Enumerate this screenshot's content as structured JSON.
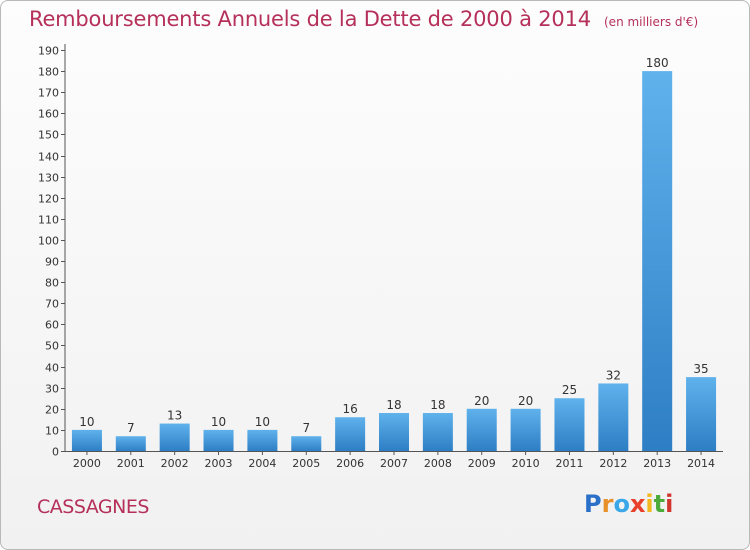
{
  "title": {
    "main": "Remboursements Annuels de la Dette de 2000 à 2014",
    "unit": "(en milliers d'€)"
  },
  "commune": "CASSAGNES",
  "logo": {
    "text": "Proxiti",
    "letter_colors": [
      "#2a6fc8",
      "#e8902a",
      "#3aa7e8",
      "#e8402a",
      "#f2b81e",
      "#4cab3a",
      "#d0352f"
    ]
  },
  "colors": {
    "title": "#b5305a",
    "bar_light": "#5fb2ec",
    "bar_dark": "#2d7ec4",
    "axis": "#555555",
    "grid": "#cfcfcf"
  },
  "chart_data": {
    "type": "bar",
    "title": "Remboursements Annuels de la Dette de 2000 à 2014",
    "subtitle": "(en milliers d'€)",
    "xlabel": "",
    "ylabel": "",
    "categories": [
      "2000",
      "2001",
      "2002",
      "2003",
      "2004",
      "2005",
      "2006",
      "2007",
      "2008",
      "2009",
      "2010",
      "2011",
      "2012",
      "2013",
      "2014"
    ],
    "values": [
      10,
      7,
      13,
      10,
      10,
      7,
      16,
      18,
      18,
      20,
      20,
      25,
      32,
      180,
      35
    ],
    "data_labels": [
      "10",
      "7",
      "13",
      "10",
      "10",
      "7",
      "16",
      "18",
      "18",
      "20",
      "20",
      "25",
      "32",
      "180",
      "35"
    ],
    "ylim": [
      0,
      190
    ],
    "yticks": [
      0,
      10,
      20,
      30,
      40,
      50,
      60,
      70,
      80,
      90,
      100,
      110,
      120,
      130,
      140,
      150,
      160,
      170,
      180,
      190
    ],
    "grid": false,
    "legend": "none"
  }
}
